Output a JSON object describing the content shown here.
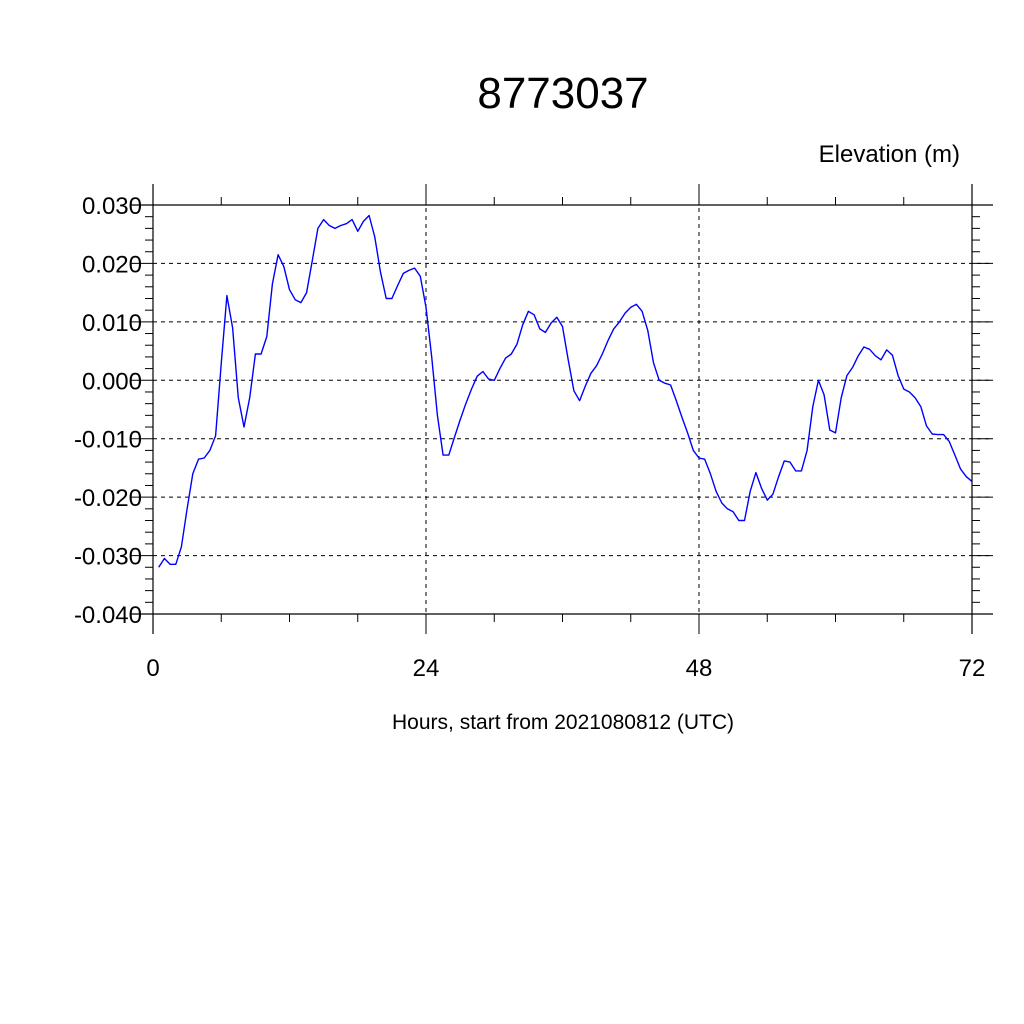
{
  "chart_data": {
    "type": "line",
    "title": "8773037",
    "ylabel": "Elevation (m)",
    "xlabel": "Hours, start from 2021080812 (UTC)",
    "xlim": [
      0,
      72
    ],
    "ylim": [
      -0.04,
      0.03
    ],
    "x_ticks": [
      0,
      24,
      48,
      72
    ],
    "x_tick_labels": [
      "0",
      "24",
      "48",
      "72"
    ],
    "y_ticks": [
      0.03,
      0.02,
      0.01,
      0.0,
      -0.01,
      -0.02,
      -0.03,
      -0.04
    ],
    "y_tick_labels": [
      "0.030",
      "0.020",
      "0.010",
      "0.000",
      "-0.010",
      "-0.020",
      "-0.030",
      "-0.040"
    ],
    "grid": true,
    "series": [
      {
        "color": "#0000ff",
        "x": [
          0.5,
          1.0,
          1.5,
          2.0,
          2.5,
          3.0,
          3.5,
          4.0,
          4.5,
          5.0,
          5.5,
          6.0,
          6.5,
          7.0,
          7.5,
          8.0,
          8.5,
          9.0,
          9.5,
          10.0,
          10.5,
          11.0,
          11.5,
          12.0,
          12.5,
          13.0,
          13.5,
          14.0,
          14.5,
          15.0,
          15.5,
          16.0,
          16.5,
          17.0,
          17.5,
          18.0,
          18.5,
          19.0,
          19.5,
          20.0,
          20.5,
          21.0,
          21.5,
          22.0,
          22.5,
          23.0,
          23.5,
          24.0,
          24.5,
          25.0,
          25.5,
          26.0,
          26.5,
          27.0,
          27.5,
          28.0,
          28.5,
          29.0,
          29.5,
          30.0,
          30.5,
          31.0,
          31.5,
          32.0,
          32.5,
          33.0,
          33.5,
          34.0,
          34.5,
          35.0,
          35.5,
          36.0,
          36.5,
          37.0,
          37.5,
          38.0,
          38.5,
          39.0,
          39.5,
          40.0,
          40.5,
          41.0,
          41.5,
          42.0,
          42.5,
          43.0,
          43.5,
          44.0,
          44.5,
          45.0,
          45.5,
          46.0,
          46.5,
          47.0,
          47.5,
          48.0,
          48.5,
          49.0,
          49.5,
          50.0,
          50.5,
          51.0,
          51.5,
          52.0,
          52.5,
          53.0,
          53.5,
          54.0,
          54.5,
          55.0,
          55.5,
          56.0,
          56.5,
          57.0,
          57.5,
          58.0,
          58.5,
          59.0,
          59.5,
          60.0,
          60.5,
          61.0,
          61.5,
          62.0,
          62.5,
          63.0,
          63.5,
          64.0,
          64.5,
          65.0,
          65.5,
          66.0,
          66.5,
          67.0,
          67.5,
          68.0,
          68.5,
          69.0,
          69.5,
          70.0,
          70.5,
          71.0,
          71.5,
          72.0
        ],
        "values": [
          -0.032,
          -0.0305,
          -0.0315,
          -0.0315,
          -0.0285,
          -0.022,
          -0.016,
          -0.0135,
          -0.0133,
          -0.012,
          -0.0095,
          0.003,
          0.0145,
          0.009,
          -0.003,
          -0.008,
          -0.003,
          0.0045,
          0.0045,
          0.0075,
          0.0165,
          0.0215,
          0.0195,
          0.0155,
          0.0138,
          0.0133,
          0.015,
          0.0205,
          0.026,
          0.0275,
          0.0265,
          0.026,
          0.0265,
          0.0268,
          0.0275,
          0.0255,
          0.0272,
          0.0282,
          0.0245,
          0.0185,
          0.014,
          0.014,
          0.0162,
          0.0183,
          0.0188,
          0.0192,
          0.0178,
          0.0125,
          0.004,
          -0.006,
          -0.0128,
          -0.0128,
          -0.0098,
          -0.0068,
          -0.004,
          -0.0015,
          0.0007,
          0.0015,
          0.0002,
          0.0,
          0.002,
          0.0038,
          0.0045,
          0.0062,
          0.0095,
          0.0118,
          0.0112,
          0.0088,
          0.0082,
          0.0098,
          0.0108,
          0.0092,
          0.0035,
          -0.0018,
          -0.0035,
          -0.001,
          0.0012,
          0.0025,
          0.0045,
          0.0068,
          0.0088,
          0.01,
          0.0115,
          0.0125,
          0.013,
          0.0118,
          0.0085,
          0.003,
          0.0,
          -0.0005,
          -0.0008,
          -0.0035,
          -0.0063,
          -0.009,
          -0.012,
          -0.0133,
          -0.0135,
          -0.016,
          -0.019,
          -0.021,
          -0.022,
          -0.0225,
          -0.024,
          -0.024,
          -0.019,
          -0.0158,
          -0.0185,
          -0.0205,
          -0.0195,
          -0.0165,
          -0.0138,
          -0.014,
          -0.0155,
          -0.0155,
          -0.012,
          -0.0045,
          0.0,
          -0.0025,
          -0.0085,
          -0.009,
          -0.003,
          0.0008,
          0.0022,
          0.0042,
          0.0057,
          0.0053,
          0.0042,
          0.0035,
          0.0052,
          0.0043,
          0.0008,
          -0.0015,
          -0.002,
          -0.003,
          -0.0045,
          -0.0078,
          -0.0092,
          -0.0093,
          -0.0093,
          -0.0105,
          -0.0128,
          -0.0152,
          -0.0165,
          -0.0173
        ]
      }
    ]
  }
}
